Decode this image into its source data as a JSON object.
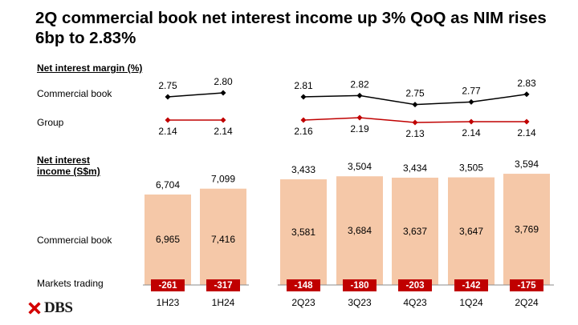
{
  "title": "2Q commercial book net interest income up 3% QoQ as NIM rises 6bp to 2.83%",
  "labels": {
    "nim_section": "Net interest margin (%)",
    "nim_commercial": "Commercial book",
    "nim_group": "Group",
    "nii_section_line1": "Net interest",
    "nii_section_line2": "income (S$m)",
    "nii_commercial": "Commercial book",
    "nii_markets": "Markets trading"
  },
  "logo": {
    "text": "DBS",
    "icon": "dbs-logo-icon"
  },
  "colors": {
    "bar": "#f5c8a8",
    "markets": "#c00000",
    "commercial_line": "#000000",
    "group_line": "#c00000",
    "baseline": "#8c8c8c"
  },
  "chart_data": {
    "type": "bar",
    "categories": [
      "1H23",
      "1H24",
      "2Q23",
      "3Q23",
      "4Q23",
      "1Q24",
      "2Q24"
    ],
    "groups": [
      {
        "name": "half-year",
        "indices": [
          0,
          1
        ]
      },
      {
        "name": "quarter",
        "indices": [
          2,
          3,
          4,
          5,
          6
        ]
      }
    ],
    "series": [
      {
        "name": "Commercial book",
        "values": [
          6965,
          7416,
          3581,
          3684,
          3637,
          3647,
          3769
        ]
      },
      {
        "name": "Markets trading",
        "values": [
          -261,
          -317,
          -148,
          -180,
          -203,
          -142,
          -175
        ]
      }
    ],
    "totals": [
      6704,
      7099,
      3433,
      3504,
      3434,
      3505,
      3594
    ],
    "nim": {
      "commercial_book": [
        2.75,
        2.8,
        2.81,
        2.82,
        2.75,
        2.77,
        2.83
      ],
      "group": [
        2.14,
        2.14,
        2.16,
        2.19,
        2.13,
        2.14,
        2.14
      ]
    },
    "value_labels": {
      "commercial_book": [
        "6,965",
        "7,416",
        "3,581",
        "3,684",
        "3,637",
        "3,647",
        "3,769"
      ],
      "markets_trading": [
        "-261",
        "-317",
        "-148",
        "-180",
        "-203",
        "-142",
        "-175"
      ],
      "totals": [
        "6,704",
        "7,099",
        "3,433",
        "3,504",
        "3,434",
        "3,505",
        "3,594"
      ],
      "nim_commercial": [
        "2.75",
        "2.80",
        "2.81",
        "2.82",
        "2.75",
        "2.77",
        "2.83"
      ],
      "nim_group": [
        "2.14",
        "2.14",
        "2.16",
        "2.19",
        "2.13",
        "2.14",
        "2.14"
      ]
    }
  }
}
